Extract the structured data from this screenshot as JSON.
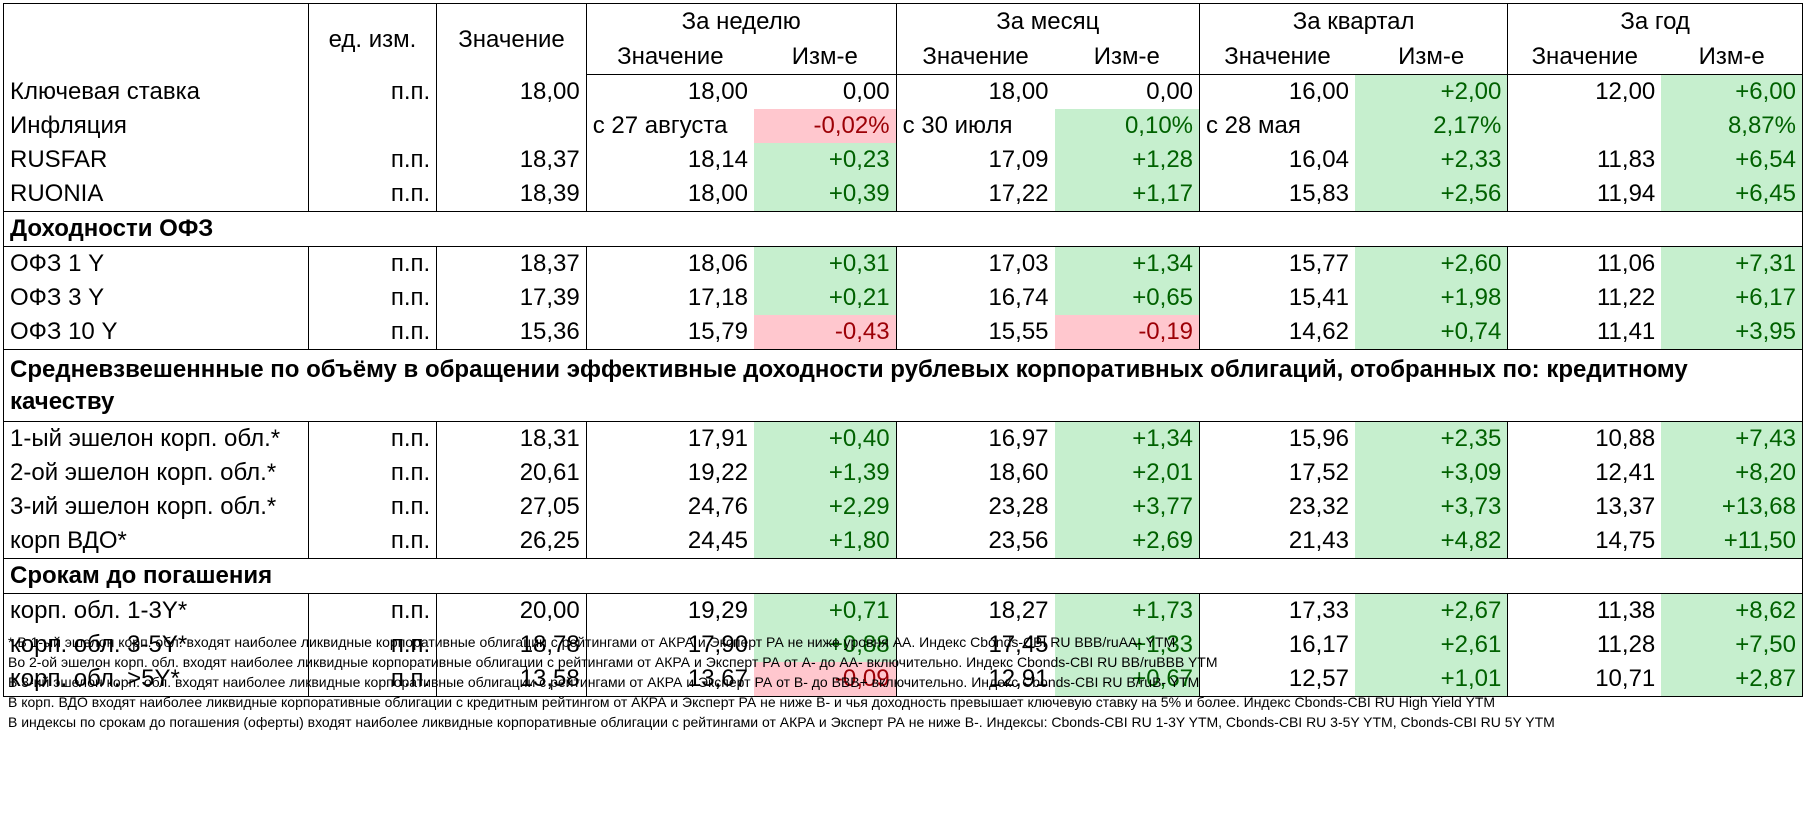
{
  "headers": {
    "unit": "ед. изм.",
    "value": "Значение",
    "periods": [
      "За неделю",
      "За месяц",
      "За квартал",
      "За год"
    ],
    "sub_value": "Значение",
    "sub_change": "Изм-е"
  },
  "groups": [
    {
      "title": "",
      "rows": [
        {
          "name": "Ключевая ставка",
          "unit": "п.п.",
          "value": "18,00",
          "cells": [
            {
              "v": "18,00",
              "c": "0,00",
              "s": ""
            },
            {
              "v": "18,00",
              "c": "0,00",
              "s": ""
            },
            {
              "v": "16,00",
              "c": "+2,00",
              "s": "pos"
            },
            {
              "v": "12,00",
              "c": "+6,00",
              "s": "pos"
            }
          ]
        },
        {
          "name": "Инфляция",
          "unit": "",
          "value": "",
          "cells": [
            {
              "v": "с 27 августа",
              "c": "-0,02%",
              "s": "neg",
              "va": "l"
            },
            {
              "v": "с 30 июля",
              "c": "0,10%",
              "s": "pos",
              "va": "l"
            },
            {
              "v": "с 28 мая",
              "c": "2,17%",
              "s": "pos",
              "va": "l"
            },
            {
              "v": "",
              "c": "8,87%",
              "s": "pos"
            }
          ]
        },
        {
          "name": "RUSFAR",
          "unit": "п.п.",
          "value": "18,37",
          "cells": [
            {
              "v": "18,14",
              "c": "+0,23",
              "s": "pos"
            },
            {
              "v": "17,09",
              "c": "+1,28",
              "s": "pos"
            },
            {
              "v": "16,04",
              "c": "+2,33",
              "s": "pos"
            },
            {
              "v": "11,83",
              "c": "+6,54",
              "s": "pos"
            }
          ]
        },
        {
          "name": "RUONIA",
          "unit": "п.п.",
          "value": "18,39",
          "cells": [
            {
              "v": "18,00",
              "c": "+0,39",
              "s": "pos"
            },
            {
              "v": "17,22",
              "c": "+1,17",
              "s": "pos"
            },
            {
              "v": "15,83",
              "c": "+2,56",
              "s": "pos"
            },
            {
              "v": "11,94",
              "c": "+6,45",
              "s": "pos"
            }
          ]
        }
      ]
    },
    {
      "title": "Доходности ОФЗ",
      "rows": [
        {
          "name": "ОФЗ 1 Y",
          "unit": "п.п.",
          "value": "18,37",
          "cells": [
            {
              "v": "18,06",
              "c": "+0,31",
              "s": "pos"
            },
            {
              "v": "17,03",
              "c": "+1,34",
              "s": "pos"
            },
            {
              "v": "15,77",
              "c": "+2,60",
              "s": "pos"
            },
            {
              "v": "11,06",
              "c": "+7,31",
              "s": "pos"
            }
          ]
        },
        {
          "name": "ОФЗ 3 Y",
          "unit": "п.п.",
          "value": "17,39",
          "cells": [
            {
              "v": "17,18",
              "c": "+0,21",
              "s": "pos"
            },
            {
              "v": "16,74",
              "c": "+0,65",
              "s": "pos"
            },
            {
              "v": "15,41",
              "c": "+1,98",
              "s": "pos"
            },
            {
              "v": "11,22",
              "c": "+6,17",
              "s": "pos"
            }
          ]
        },
        {
          "name": "ОФЗ 10 Y",
          "unit": "п.п.",
          "value": "15,36",
          "cells": [
            {
              "v": "15,79",
              "c": "-0,43",
              "s": "neg"
            },
            {
              "v": "15,55",
              "c": "-0,19",
              "s": "neg"
            },
            {
              "v": "14,62",
              "c": "+0,74",
              "s": "pos"
            },
            {
              "v": "11,41",
              "c": "+3,95",
              "s": "pos"
            }
          ]
        }
      ]
    },
    {
      "title": "Средневзвешеннные по объёму в обращении эффективные доходности рублевых корпоративных облигаций, отобранных по: кредитному качеству",
      "rows": [
        {
          "name": "1-ый эшелон корп. обл.*",
          "unit": "п.п.",
          "value": "18,31",
          "cells": [
            {
              "v": "17,91",
              "c": "+0,40",
              "s": "pos"
            },
            {
              "v": "16,97",
              "c": "+1,34",
              "s": "pos"
            },
            {
              "v": "15,96",
              "c": "+2,35",
              "s": "pos"
            },
            {
              "v": "10,88",
              "c": "+7,43",
              "s": "pos"
            }
          ]
        },
        {
          "name": "2-ой эшелон корп. обл.*",
          "unit": "п.п.",
          "value": "20,61",
          "cells": [
            {
              "v": "19,22",
              "c": "+1,39",
              "s": "pos"
            },
            {
              "v": "18,60",
              "c": "+2,01",
              "s": "pos"
            },
            {
              "v": "17,52",
              "c": "+3,09",
              "s": "pos"
            },
            {
              "v": "12,41",
              "c": "+8,20",
              "s": "pos"
            }
          ]
        },
        {
          "name": "3-ий эшелон корп. обл.*",
          "unit": "п.п.",
          "value": "27,05",
          "cells": [
            {
              "v": "24,76",
              "c": "+2,29",
              "s": "pos"
            },
            {
              "v": "23,28",
              "c": "+3,77",
              "s": "pos"
            },
            {
              "v": "23,32",
              "c": "+3,73",
              "s": "pos"
            },
            {
              "v": "13,37",
              "c": "+13,68",
              "s": "pos"
            }
          ]
        },
        {
          "name": "корп ВДО*",
          "unit": "п.п.",
          "value": "26,25",
          "cells": [
            {
              "v": "24,45",
              "c": "+1,80",
              "s": "pos"
            },
            {
              "v": "23,56",
              "c": "+2,69",
              "s": "pos"
            },
            {
              "v": "21,43",
              "c": "+4,82",
              "s": "pos"
            },
            {
              "v": "14,75",
              "c": "+11,50",
              "s": "pos"
            }
          ]
        }
      ]
    },
    {
      "title": "Срокам до погашения",
      "rows": [
        {
          "name": "корп. обл. 1-3Y*",
          "unit": "п.п.",
          "value": "20,00",
          "cells": [
            {
              "v": "19,29",
              "c": "+0,71",
              "s": "pos"
            },
            {
              "v": "18,27",
              "c": "+1,73",
              "s": "pos"
            },
            {
              "v": "17,33",
              "c": "+2,67",
              "s": "pos"
            },
            {
              "v": "11,38",
              "c": "+8,62",
              "s": "pos"
            }
          ]
        },
        {
          "name": "корп. обл. 3-5Y*",
          "unit": "п.п.",
          "value": "18,78",
          "cells": [
            {
              "v": "17,90",
              "c": "+0,88",
              "s": "pos"
            },
            {
              "v": "17,45",
              "c": "+1,33",
              "s": "pos"
            },
            {
              "v": "16,17",
              "c": "+2,61",
              "s": "pos"
            },
            {
              "v": "11,28",
              "c": "+7,50",
              "s": "pos"
            }
          ]
        },
        {
          "name": "корп. обл. >5Y*",
          "unit": "п.п.",
          "value": "13,58",
          "cells": [
            {
              "v": "13,67",
              "c": "-0,09",
              "s": "neg"
            },
            {
              "v": "12,91",
              "c": "+0,67",
              "s": "pos"
            },
            {
              "v": "12,57",
              "c": "+1,01",
              "s": "pos"
            },
            {
              "v": "10,71",
              "c": "+2,87",
              "s": "pos"
            }
          ]
        }
      ]
    }
  ],
  "notes": [
    "* В 1-ый эшелон корп. обл. входят наиболее ликвидные корпоративные облигации с рейтингами от АКРА и Эксперт РА не ниже уровня АА. Индекс Cbonds-CBI RU BBB/ruAA- YTM",
    "Во 2-ой эшелон корп. обл. входят наиболее ликвидные корпоративные облигации с рейтингами от АКРА и Эксперт РА от А- до АА- включительно.  Индекс Cbonds-CBI RU BB/ruBBB YTM",
    "В 3-ий эшелон корп. обл. входят наиболее ликвидные корпоративные облигации с рейтингами от АКРА и Эксперт РА от В- до BBB+ включительно.  Индекс Cbonds-CBI RU B/ruB- YTM",
    "В корп. ВДО входят наиболее ликвидные корпоративные облигации с кредитным рейтингом от АКРА и Эксперт РА не ниже В- и чья доходность превышает ключевую ставку на 5% и более. Индекс  Cbonds-CBI RU High Yield YTM",
    "В индексы по срокам до погашения (оферты) входят наиболее ликвидные корпоративные облигации с рейтингами от АКРА и Эксперт РА не ниже В-. Индексы:  Cbonds-CBI RU 1-3Y YTM, Cbonds-CBI RU 3-5Y YTM, Cbonds-CBI RU 5Y YTM"
  ]
}
